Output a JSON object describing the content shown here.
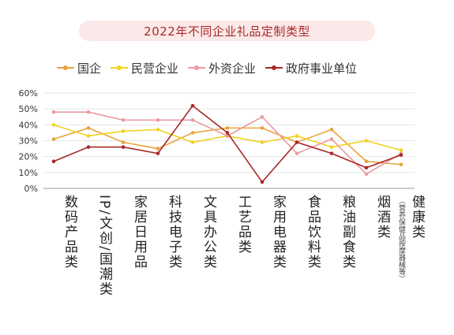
{
  "chart_data": {
    "type": "line",
    "title": "2022年不同企业礼品定制类型",
    "categories": [
      "数码产品类",
      "IP/文创/国潮类",
      "家居日用品",
      "科技电子类",
      "文具办公类",
      "工艺品类",
      "家用电器类",
      "食品饮料类",
      "粮油副食类",
      "烟酒类",
      "健康类"
    ],
    "category_notes": [
      "",
      "",
      "",
      "",
      "",
      "",
      "",
      "",
      "",
      "",
      "（营养保健品按摩器械等）"
    ],
    "ylim": [
      0,
      60
    ],
    "yticks": [
      "0%",
      "10%",
      "20%",
      "30%",
      "40%",
      "50%",
      "60%"
    ],
    "ytick_values": [
      0,
      10,
      20,
      30,
      40,
      50,
      60
    ],
    "legend_position": "top",
    "series": [
      {
        "name": "国企",
        "color": "#e8a33a",
        "values": [
          31,
          38,
          29,
          25,
          35,
          38,
          38,
          29,
          37,
          17,
          15
        ]
      },
      {
        "name": "民营企业",
        "color": "#f2d21e",
        "values": [
          40,
          33,
          36,
          37,
          29,
          33,
          29,
          33,
          26,
          30,
          24
        ]
      },
      {
        "name": "外资企业",
        "color": "#eb9aa0",
        "values": [
          48,
          48,
          43,
          43,
          43,
          33,
          45,
          22,
          31,
          9,
          22
        ]
      },
      {
        "name": "政府事业单位",
        "color": "#a82828",
        "values": [
          17,
          26,
          26,
          22,
          52,
          35,
          4,
          29,
          22,
          13,
          21
        ]
      }
    ]
  }
}
